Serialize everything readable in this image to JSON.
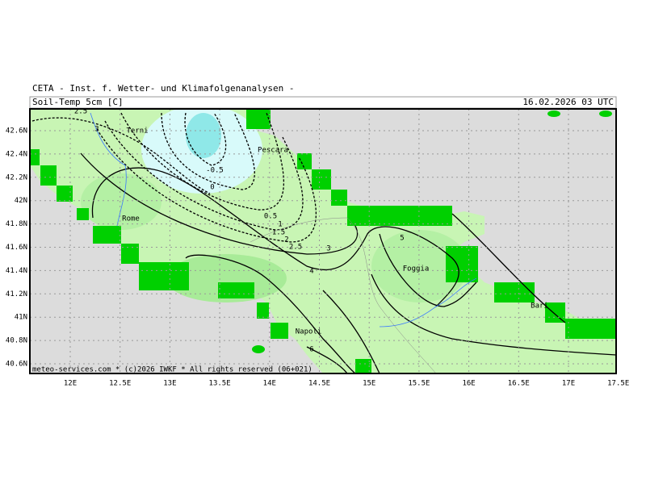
{
  "header": {
    "title": "CETA - Inst. f. Wetter- und Klimafolgenanalysen -",
    "field": "Soil-Temp 5cm [C]",
    "valid_time": "16.02.2026 03 UTC"
  },
  "footer": "meteo-services.com * (c)2026 IWKF * All rights reserved (06+021)",
  "axes": {
    "lat_labels": [
      "42.6N",
      "42.4N",
      "42.2N",
      "42N",
      "41.8N",
      "41.6N",
      "41.4N",
      "41.2N",
      "41N",
      "40.8N",
      "40.6N"
    ],
    "lon_labels": [
      "12E",
      "12.5E",
      "13E",
      "13.5E",
      "14E",
      "14.5E",
      "15E",
      "15.5E",
      "16E",
      "16.5E",
      "17E",
      "17.5E"
    ]
  },
  "places": [
    "Terni",
    "Pescara",
    "Rome",
    "Foggia",
    "Bari",
    "Napoli"
  ],
  "contour_labels": [
    "2.5",
    "3",
    "-0.5",
    "0",
    "0.5",
    "1",
    "1.5",
    "2",
    "2.5",
    "3",
    "4",
    "5",
    "6"
  ]
}
